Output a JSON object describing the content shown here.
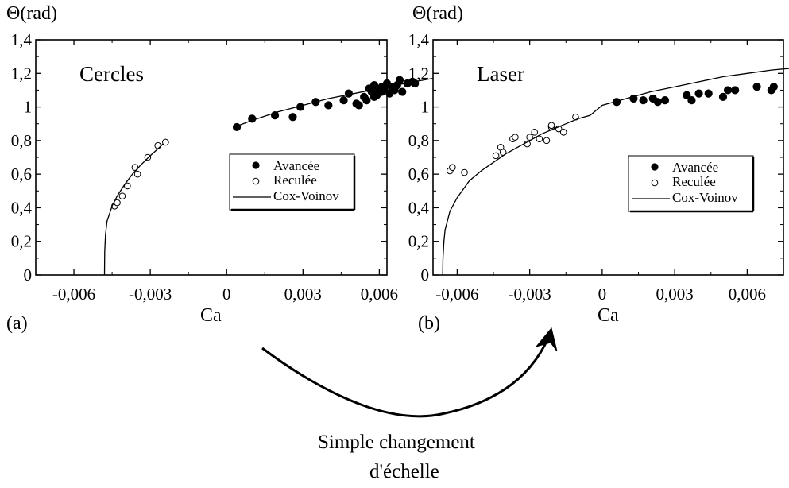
{
  "panels": [
    {
      "letter": "(a)",
      "ylabel": "Θ(rad)",
      "xlabel": "Ca",
      "inner_label": "Cercles",
      "legend": {
        "advancing": "Avancée",
        "receding": "Reculée",
        "fit": "Cox-Voinov"
      }
    },
    {
      "letter": "(b)",
      "ylabel": "Θ(rad)",
      "xlabel": "Ca",
      "inner_label": "Laser",
      "legend": {
        "advancing": "Avancée",
        "receding": "Reculée",
        "fit": "Cox-Voinov"
      }
    }
  ],
  "caption": {
    "line1": "Simple changement",
    "line2": "d'échelle"
  },
  "chart_data": [
    {
      "type": "scatter",
      "title": "",
      "xlabel": "Ca",
      "ylabel": "Θ(rad)",
      "annotation": "Cercles",
      "xlim": [
        -0.0075,
        0.0063
      ],
      "ylim": [
        0,
        1.4
      ],
      "xticks": [
        -0.006,
        -0.003,
        0,
        0.003,
        0.006
      ],
      "xtick_labels": [
        "-0,006",
        "-0,003",
        "0",
        "0,003",
        "0,006"
      ],
      "yticks": [
        0,
        0.2,
        0.4,
        0.6,
        0.8,
        1,
        1.2,
        1.4
      ],
      "ytick_labels": [
        "0",
        "0,2",
        "0,4",
        "0,6",
        "0,8",
        "1",
        "1,2",
        "1,4"
      ],
      "grid": false,
      "legend_position": "right",
      "series": [
        {
          "name": "Avancée",
          "marker": "filled-circle",
          "points": [
            [
              0.0004,
              0.88
            ],
            [
              0.001,
              0.93
            ],
            [
              0.0019,
              0.95
            ],
            [
              0.0026,
              0.94
            ],
            [
              0.0029,
              1.0
            ],
            [
              0.0035,
              1.03
            ],
            [
              0.004,
              1.01
            ],
            [
              0.0046,
              1.04
            ],
            [
              0.0048,
              1.08
            ],
            [
              0.0051,
              1.02
            ],
            [
              0.0052,
              1.01
            ],
            [
              0.0054,
              1.06
            ],
            [
              0.0055,
              1.04
            ],
            [
              0.0056,
              1.11
            ],
            [
              0.0057,
              1.09
            ],
            [
              0.0058,
              1.06
            ],
            [
              0.0058,
              1.13
            ],
            [
              0.0059,
              1.07
            ],
            [
              0.006,
              1.1
            ],
            [
              0.0061,
              1.09
            ],
            [
              0.0061,
              1.12
            ],
            [
              0.0062,
              1.11
            ],
            [
              0.0063,
              1.14
            ],
            [
              0.0064,
              1.08
            ],
            [
              0.0065,
              1.12
            ],
            [
              0.0066,
              1.1
            ],
            [
              0.0067,
              1.13
            ],
            [
              0.0068,
              1.16
            ],
            [
              0.0069,
              1.09
            ],
            [
              0.0071,
              1.14
            ],
            [
              0.0073,
              1.15
            ],
            [
              0.0074,
              1.14
            ]
          ]
        },
        {
          "name": "Reculée",
          "marker": "open-circle",
          "points": [
            [
              -0.0044,
              0.41
            ],
            [
              -0.0043,
              0.43
            ],
            [
              -0.0041,
              0.47
            ],
            [
              -0.0039,
              0.53
            ],
            [
              -0.0036,
              0.64
            ],
            [
              -0.0035,
              0.6
            ],
            [
              -0.0031,
              0.7
            ],
            [
              -0.0027,
              0.77
            ],
            [
              -0.0024,
              0.79
            ]
          ]
        },
        {
          "name": "Cox-Voinov",
          "type": "line",
          "points": [
            [
              -0.0048,
              0.0
            ],
            [
              -0.00479,
              0.14
            ],
            [
              -0.00476,
              0.24
            ],
            [
              -0.0047,
              0.32
            ],
            [
              -0.0045,
              0.41
            ],
            [
              -0.0043,
              0.47
            ],
            [
              -0.004,
              0.54
            ],
            [
              -0.0037,
              0.6
            ],
            [
              -0.0034,
              0.65
            ],
            [
              -0.003,
              0.71
            ],
            [
              -0.0027,
              0.75
            ],
            [
              -0.0025,
              0.78
            ],
            [
              0.0003,
              0.88
            ],
            [
              0.001,
              0.92
            ],
            [
              0.002,
              0.97
            ],
            [
              0.003,
              1.01
            ],
            [
              0.004,
              1.05
            ],
            [
              0.005,
              1.08
            ],
            [
              0.006,
              1.11
            ],
            [
              0.007,
              1.14
            ],
            [
              0.0081,
              1.17
            ]
          ]
        }
      ]
    },
    {
      "type": "scatter",
      "title": "",
      "xlabel": "Ca",
      "ylabel": "Θ(rad)",
      "annotation": "Laser",
      "xlim": [
        -0.007,
        0.0075
      ],
      "ylim": [
        0,
        1.4
      ],
      "xticks": [
        -0.006,
        -0.003,
        0,
        0.003,
        0.006
      ],
      "xtick_labels": [
        "-0,006",
        "-0,003",
        "0",
        "0,003",
        "0,006"
      ],
      "yticks": [
        0,
        0.2,
        0.4,
        0.6,
        0.8,
        1,
        1.2,
        1.4
      ],
      "ytick_labels": [
        "0",
        "0,2",
        "0,4",
        "0,6",
        "0,8",
        "1",
        "1,2",
        "1,4"
      ],
      "grid": false,
      "legend_position": "right",
      "series": [
        {
          "name": "Avancée",
          "marker": "filled-circle",
          "points": [
            [
              0.0006,
              1.03
            ],
            [
              0.0013,
              1.05
            ],
            [
              0.0017,
              1.04
            ],
            [
              0.0021,
              1.05
            ],
            [
              0.0023,
              1.03
            ],
            [
              0.0026,
              1.04
            ],
            [
              0.0035,
              1.07
            ],
            [
              0.0037,
              1.04
            ],
            [
              0.004,
              1.08
            ],
            [
              0.0044,
              1.08
            ],
            [
              0.005,
              1.06
            ],
            [
              0.0052,
              1.1
            ],
            [
              0.0055,
              1.1
            ],
            [
              0.0064,
              1.12
            ],
            [
              0.007,
              1.1
            ],
            [
              0.0071,
              1.12
            ],
            [
              0.008,
              1.15
            ]
          ]
        },
        {
          "name": "Reculée",
          "marker": "open-circle",
          "points": [
            [
              -0.0063,
              0.62
            ],
            [
              -0.0062,
              0.64
            ],
            [
              -0.0057,
              0.61
            ],
            [
              -0.0044,
              0.71
            ],
            [
              -0.0042,
              0.76
            ],
            [
              -0.0041,
              0.73
            ],
            [
              -0.0037,
              0.81
            ],
            [
              -0.0036,
              0.82
            ],
            [
              -0.0031,
              0.78
            ],
            [
              -0.003,
              0.82
            ],
            [
              -0.0028,
              0.85
            ],
            [
              -0.0026,
              0.81
            ],
            [
              -0.0023,
              0.8
            ],
            [
              -0.0021,
              0.88
            ],
            [
              -0.0021,
              0.89
            ],
            [
              -0.0018,
              0.87
            ],
            [
              -0.0016,
              0.85
            ],
            [
              -0.0011,
              0.94
            ]
          ]
        },
        {
          "name": "Cox-Voinov",
          "type": "line",
          "points": [
            [
              -0.0066,
              0.0
            ],
            [
              -0.00659,
              0.1
            ],
            [
              -0.00655,
              0.2
            ],
            [
              -0.0065,
              0.27
            ],
            [
              -0.0063,
              0.38
            ],
            [
              -0.006,
              0.46
            ],
            [
              -0.0055,
              0.56
            ],
            [
              -0.005,
              0.62
            ],
            [
              -0.0045,
              0.67
            ],
            [
              -0.004,
              0.72
            ],
            [
              -0.0035,
              0.76
            ],
            [
              -0.003,
              0.8
            ],
            [
              -0.0025,
              0.84
            ],
            [
              -0.002,
              0.87
            ],
            [
              -0.0015,
              0.9
            ],
            [
              -0.001,
              0.93
            ],
            [
              -0.0005,
              0.95
            ],
            [
              0.0,
              1.01
            ],
            [
              0.001,
              1.05
            ],
            [
              0.002,
              1.09
            ],
            [
              0.003,
              1.12
            ],
            [
              0.004,
              1.15
            ],
            [
              0.005,
              1.18
            ],
            [
              0.006,
              1.2
            ],
            [
              0.007,
              1.22
            ],
            [
              0.0078,
              1.23
            ]
          ]
        }
      ]
    }
  ]
}
